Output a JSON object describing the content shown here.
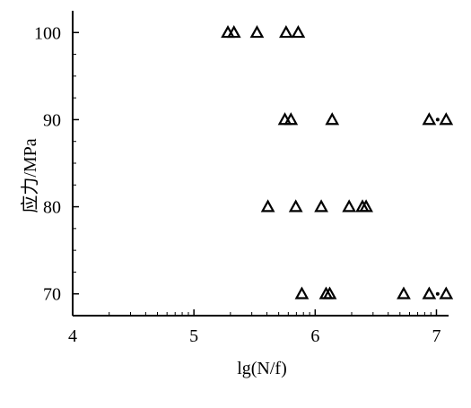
{
  "chart_data": {
    "type": "scatter",
    "title": "",
    "xlabel": "lg(N/f)",
    "ylabel": "应力/MPa",
    "xlim": [
      4,
      7.1
    ],
    "ylim": [
      67.5,
      102.5
    ],
    "x_ticks": [
      4,
      5,
      6,
      7
    ],
    "y_ticks": [
      70,
      80,
      90,
      100
    ],
    "x_tick_labels": [
      "4",
      "5",
      "6",
      "7"
    ],
    "y_tick_labels": [
      "70",
      "80",
      "90",
      "100"
    ],
    "x_scale": "linear",
    "grid": false,
    "legend": "none",
    "marker": "open-triangle",
    "series": [
      {
        "points": [
          {
            "x": 5.28,
            "y": 100
          },
          {
            "x": 5.33,
            "y": 100
          },
          {
            "x": 5.52,
            "y": 100
          },
          {
            "x": 5.76,
            "y": 100
          },
          {
            "x": 5.86,
            "y": 100
          },
          {
            "x": 5.75,
            "y": 90
          },
          {
            "x": 5.8,
            "y": 90
          },
          {
            "x": 6.14,
            "y": 90
          },
          {
            "x": 6.94,
            "y": 90
          },
          {
            "x": 7.08,
            "y": 90
          },
          {
            "x": 5.61,
            "y": 80
          },
          {
            "x": 5.84,
            "y": 80
          },
          {
            "x": 6.05,
            "y": 80
          },
          {
            "x": 6.28,
            "y": 80
          },
          {
            "x": 6.39,
            "y": 80
          },
          {
            "x": 6.42,
            "y": 80
          },
          {
            "x": 5.89,
            "y": 70
          },
          {
            "x": 6.09,
            "y": 70
          },
          {
            "x": 6.12,
            "y": 70
          },
          {
            "x": 6.73,
            "y": 70
          },
          {
            "x": 6.94,
            "y": 70
          },
          {
            "x": 7.08,
            "y": 70
          }
        ]
      }
    ],
    "small_dot_points": [
      {
        "x": 7.01,
        "y": 90
      },
      {
        "x": 7.01,
        "y": 70
      }
    ]
  }
}
